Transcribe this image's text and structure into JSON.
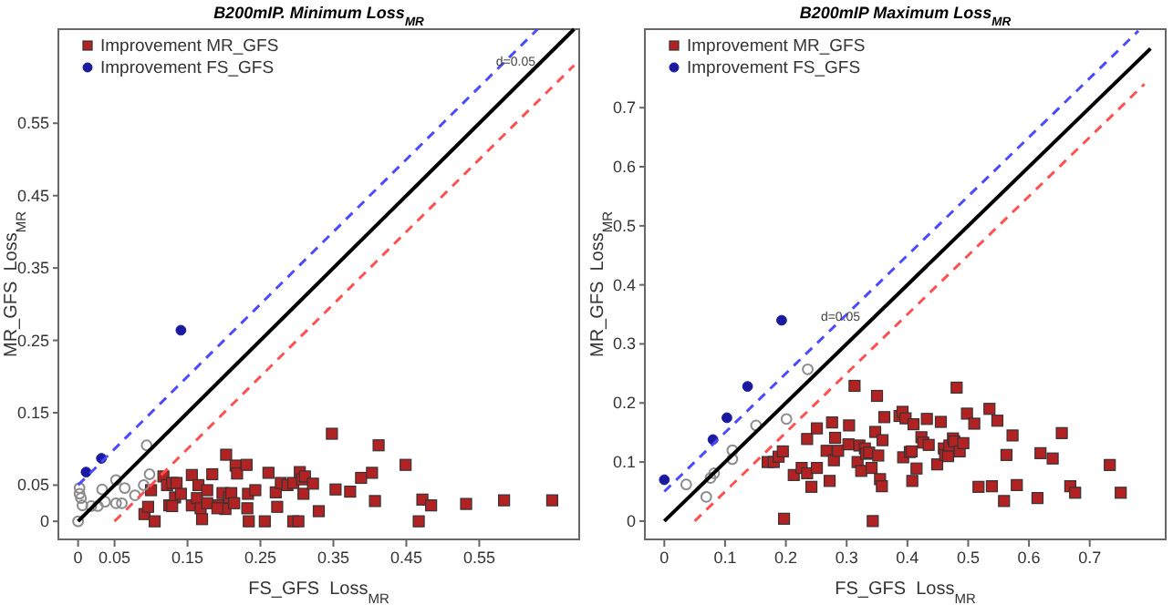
{
  "chart_data": [
    {
      "type": "scatter",
      "title": "B200mIP. Minimum Loss$_{MR}$",
      "xlabel": "FS_GFS  Loss$_{MR}$",
      "ylabel": "MR_GFS  Loss$_{MR}$",
      "xlim": [
        -0.027,
        0.687
      ],
      "ylim": [
        -0.025,
        0.68
      ],
      "xticks": [
        0,
        0.05,
        0.15,
        0.25,
        0.35,
        0.45,
        0.55
      ],
      "yticks": [
        0,
        0.05,
        0.15,
        0.25,
        0.35,
        0.45,
        0.55
      ],
      "grid": false,
      "legend": "top left",
      "annotations": [
        {
          "text": "d=0.05",
          "x": 0.6,
          "y": 0.63
        }
      ],
      "series": [
        {
          "name": "Improvement MR_GFS",
          "type": "scatter",
          "marker": "square",
          "color": "#b22222",
          "x": [
            0.091,
            0.096,
            0.1,
            0.105,
            0.117,
            0.122,
            0.125,
            0.129,
            0.133,
            0.135,
            0.141,
            0.129,
            0.156,
            0.156,
            0.163,
            0.165,
            0.168,
            0.17,
            0.177,
            0.184,
            0.192,
            0.198,
            0.202,
            0.203,
            0.207,
            0.21,
            0.214,
            0.216,
            0.218,
            0.231,
            0.233,
            0.234,
            0.232,
            0.243,
            0.256,
            0.261,
            0.271,
            0.273,
            0.278,
            0.287,
            0.295,
            0.295,
            0.302,
            0.304,
            0.307,
            0.309,
            0.311,
            0.322,
            0.33,
            0.348,
            0.353,
            0.373,
            0.388,
            0.403,
            0.407,
            0.412,
            0.449,
            0.467,
            0.472,
            0.484,
            0.532,
            0.584,
            0.65,
            0.177,
            0.191
          ],
          "values": [
            0.01,
            0.02,
            0.043,
            0.0,
            0.062,
            0.05,
            0.022,
            0.053,
            0.033,
            0.053,
            0.038,
            0.021,
            0.064,
            0.022,
            0.032,
            0.05,
            0.018,
            0.003,
            0.043,
            0.065,
            0.022,
            0.039,
            0.017,
            0.092,
            0.033,
            0.039,
            0.025,
            0.077,
            0.066,
            0.078,
            0.038,
            0.0,
            0.018,
            0.043,
            0.0,
            0.067,
            0.04,
            0.02,
            0.053,
            0.05,
            0.053,
            0.0,
            0.0,
            0.068,
            0.058,
            0.038,
            0.062,
            0.052,
            0.014,
            0.121,
            0.044,
            0.041,
            0.06,
            0.067,
            0.028,
            0.105,
            0.078,
            0.0,
            0.03,
            0.022,
            0.024,
            0.029,
            0.029,
            0.025,
            0.018
          ]
        },
        {
          "name": "Improvement FS_GFS",
          "type": "scatter",
          "marker": "circle",
          "color": "#1a1aa0",
          "x": [
            0.011,
            0.032,
            0.141
          ],
          "values": [
            0.068,
            0.087,
            0.264
          ]
        },
        {
          "marker": "circle",
          "color": "#8c8c8c",
          "x": [
            0,
            0.002,
            0.002,
            0.004,
            0.006,
            0.018,
            0.027,
            0.033,
            0.037,
            0.052,
            0.052,
            0.06,
            0.064,
            0.078,
            0.09,
            0.098,
            0.094
          ],
          "values": [
            0,
            0.038,
            0.046,
            0.032,
            0.022,
            0.021,
            0.021,
            0.044,
            0.027,
            0.057,
            0.025,
            0.025,
            0.046,
            0.036,
            0.05,
            0.065,
            0.105
          ]
        },
        {
          "type": "line",
          "marker": "none",
          "line_style": "solid",
          "color": "#000000",
          "x": [
            0,
            0.68
          ],
          "values": [
            0,
            0.68
          ]
        },
        {
          "type": "line",
          "marker": "none",
          "line_style": "dashed",
          "color": "#4a4aff",
          "x": [
            0,
            0.63
          ],
          "values": [
            0.05,
            0.68
          ]
        },
        {
          "type": "line",
          "marker": "none",
          "line_style": "dashed",
          "color": "#ff5050",
          "x": [
            0.05,
            0.68
          ],
          "values": [
            0,
            0.63
          ]
        }
      ]
    },
    {
      "type": "scatter",
      "title": "B200mIP Maximum Loss$_{MR}$",
      "xlabel": "FS_GFS  Loss$_{MR}$",
      "ylabel": "MR_GFS  Loss$_{MR}$",
      "xlim": [
        -0.032,
        0.825
      ],
      "ylim": [
        -0.031,
        0.833
      ],
      "xticks": [
        0,
        0.1,
        0.2,
        0.3,
        0.4,
        0.5,
        0.6,
        0.7
      ],
      "yticks": [
        0,
        0.1,
        0.2,
        0.3,
        0.4,
        0.5,
        0.6,
        0.7
      ],
      "grid": false,
      "legend": "top left",
      "annotations": [
        {
          "text": "d=0.05",
          "x": 0.29,
          "y": 0.34
        }
      ],
      "series": [
        {
          "name": "Improvement MR_GFS",
          "type": "scatter",
          "marker": "square",
          "color": "#b22222",
          "x": [
            0.197,
            0.17,
            0.18,
            0.188,
            0.195,
            0.213,
            0.226,
            0.235,
            0.235,
            0.242,
            0.251,
            0.251,
            0.267,
            0.272,
            0.276,
            0.281,
            0.279,
            0.286,
            0.303,
            0.304,
            0.313,
            0.318,
            0.321,
            0.324,
            0.33,
            0.332,
            0.337,
            0.341,
            0.343,
            0.347,
            0.35,
            0.352,
            0.355,
            0.358,
            0.359,
            0.362,
            0.387,
            0.392,
            0.393,
            0.397,
            0.404,
            0.407,
            0.408,
            0.41,
            0.415,
            0.423,
            0.426,
            0.432,
            0.435,
            0.449,
            0.455,
            0.46,
            0.462,
            0.467,
            0.469,
            0.475,
            0.477,
            0.481,
            0.486,
            0.492,
            0.498,
            0.51,
            0.517,
            0.535,
            0.539,
            0.548,
            0.559,
            0.563,
            0.573,
            0.58,
            0.614,
            0.619,
            0.639,
            0.654,
            0.668,
            0.676,
            0.733,
            0.751
          ],
          "values": [
            0.004,
            0.1,
            0.1,
            0.109,
            0.118,
            0.078,
            0.09,
            0.081,
            0.139,
            0.058,
            0.09,
            0.157,
            0.119,
            0.068,
            0.167,
            0.141,
            0.103,
            0.119,
            0.13,
            0.162,
            0.229,
            0.1,
            0.128,
            0.085,
            0.123,
            0.114,
            0.116,
            0.09,
            0.0,
            0.151,
            0.212,
            0.111,
            0.071,
            0.059,
            0.137,
            0.176,
            0.178,
            0.185,
            0.108,
            0.174,
            0.117,
            0.118,
            0.068,
            0.164,
            0.089,
            0.142,
            0.133,
            0.173,
            0.129,
            0.096,
            0.168,
            0.123,
            0.112,
            0.11,
            0.128,
            0.14,
            0.135,
            0.226,
            0.118,
            0.132,
            0.182,
            0.165,
            0.058,
            0.19,
            0.059,
            0.17,
            0.034,
            0.112,
            0.145,
            0.061,
            0.039,
            0.115,
            0.106,
            0.149,
            0.059,
            0.048,
            0.095,
            0.048
          ]
        },
        {
          "name": "Improvement FS_GFS",
          "type": "scatter",
          "marker": "circle",
          "color": "#1a1aa0",
          "x": [
            0,
            0.08,
            0.103,
            0.137,
            0.193
          ],
          "values": [
            0.07,
            0.138,
            0.175,
            0.228,
            0.34
          ]
        },
        {
          "marker": "circle",
          "color": "#8c8c8c",
          "x": [
            0.036,
            0.069,
            0.076,
            0.082,
            0.112,
            0.112,
            0.151,
            0.201,
            0.236
          ],
          "values": [
            0.062,
            0.041,
            0.073,
            0.081,
            0.12,
            0.105,
            0.162,
            0.173,
            0.257
          ]
        },
        {
          "type": "line",
          "marker": "none",
          "line_style": "solid",
          "color": "#000000",
          "x": [
            0,
            0.8
          ],
          "values": [
            0,
            0.8
          ]
        },
        {
          "type": "line",
          "marker": "none",
          "line_style": "dashed",
          "color": "#4a4aff",
          "x": [
            0,
            0.78
          ],
          "values": [
            0.05,
            0.83
          ]
        },
        {
          "type": "line",
          "marker": "none",
          "line_style": "dashed",
          "color": "#ff5050",
          "x": [
            0.05,
            0.79
          ],
          "values": [
            0,
            0.74
          ]
        }
      ]
    }
  ]
}
